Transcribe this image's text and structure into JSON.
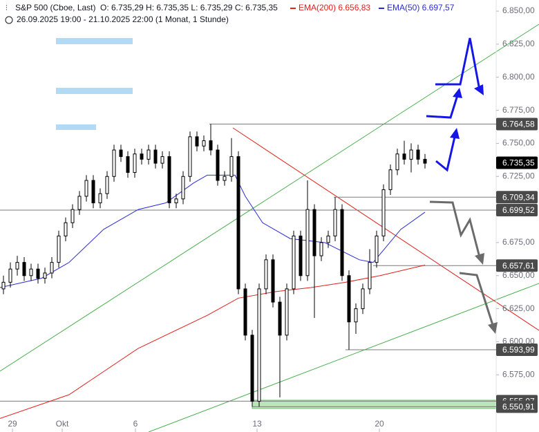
{
  "header": {
    "symbol": "S&P 500 (Cboe, Last)",
    "ohlc": "O: 6.735,29  H: 6.735,35  L: 6.735,29  C: 6.735,35",
    "ema200": "EMA(200)  6.656,83",
    "ema50": "EMA(50)  6.697,57",
    "range": "26.09.2025 19:00 - 21.10.2025 22:00  (1 Monat, 1 Stunde)"
  },
  "chart_data": {
    "type": "candlestick",
    "xlim": [
      0,
      143.6
    ],
    "ylim": [
      6543.8,
      6858.4
    ],
    "xticks": [
      {
        "value": 3.6,
        "label": "29"
      },
      {
        "value": 18,
        "label": "Okt"
      },
      {
        "value": 39.2,
        "label": "6"
      },
      {
        "value": 74.4,
        "label": "13"
      },
      {
        "value": 109.8,
        "label": "20"
      }
    ],
    "yticks": [
      {
        "value": 6575,
        "label": "6.575,00"
      },
      {
        "value": 6600,
        "label": "6.600,00"
      },
      {
        "value": 6625,
        "label": "6.625,00"
      },
      {
        "value": 6650,
        "label": "6.650,00"
      },
      {
        "value": 6675,
        "label": "6.675,00"
      },
      {
        "value": 6700,
        "label": "6.700,00"
      },
      {
        "value": 6725,
        "label": "6.725,00"
      },
      {
        "value": 6750,
        "label": "6.750,00"
      },
      {
        "value": 6775,
        "label": "6.775,00"
      },
      {
        "value": 6800,
        "label": "6.800,00"
      },
      {
        "value": 6825,
        "label": "6.825,00"
      },
      {
        "value": 6850,
        "label": "6.850,00"
      }
    ],
    "x": [
      1,
      3,
      5,
      7,
      9,
      11,
      13,
      15,
      17,
      19,
      21,
      23,
      25,
      27,
      29,
      31,
      33,
      35,
      37,
      39,
      41,
      43,
      45,
      47,
      49,
      51,
      53,
      55,
      57,
      59,
      61,
      63,
      65,
      67,
      69,
      71,
      73,
      75,
      77,
      79,
      81,
      83,
      85,
      87,
      89,
      91,
      93,
      95,
      97,
      99,
      101,
      103,
      105,
      107,
      109,
      111,
      113,
      115,
      117,
      119,
      121,
      123
    ],
    "open": [
      6640,
      6645,
      6655,
      6660,
      6650,
      6655,
      6648,
      6652,
      6660,
      6680,
      6690,
      6700,
      6710,
      6722,
      6705,
      6712,
      6725,
      6745,
      6740,
      6728,
      6742,
      6738,
      6745,
      6735,
      6740,
      6705,
      6708,
      6725,
      6755,
      6748,
      6752,
      6745,
      6722,
      6725,
      6740,
      6640,
      6605,
      6555,
      6640,
      6662,
      6630,
      6605,
      6640,
      6680,
      6650,
      6700,
      6665,
      6675,
      6680,
      6700,
      6650,
      6615,
      6625,
      6640,
      6660,
      6680,
      6715,
      6730,
      6742,
      6738,
      6745,
      6738
    ],
    "high": [
      6650,
      6660,
      6665,
      6664,
      6659,
      6659,
      6656,
      6664,
      6684,
      6694,
      6704,
      6714,
      6726,
      6726,
      6716,
      6729,
      6749,
      6749,
      6744,
      6746,
      6746,
      6749,
      6749,
      6744,
      6744,
      6712,
      6729,
      6759,
      6759,
      6756,
      6764.58,
      6749,
      6729,
      6754,
      6744,
      6644,
      6609,
      6644,
      6666,
      6666,
      6634,
      6644,
      6684,
      6684,
      6722,
      6704,
      6679,
      6684,
      6709.34,
      6704,
      6654,
      6629,
      6644,
      6670,
      6684,
      6719,
      6734,
      6746,
      6752,
      6750,
      6749,
      6742
    ],
    "low": [
      6636,
      6641,
      6650,
      6646,
      6646,
      6644,
      6644,
      6648,
      6656,
      6676,
      6686,
      6696,
      6706,
      6701,
      6701,
      6708,
      6721,
      6736,
      6724,
      6724,
      6734,
      6734,
      6731,
      6731,
      6701,
      6701,
      6704,
      6721,
      6744,
      6744,
      6741,
      6718,
      6718,
      6721,
      6636,
      6601,
      6550.91,
      6551,
      6636,
      6626,
      6558,
      6601,
      6636,
      6646,
      6646,
      6618,
      6661,
      6671,
      6676,
      6646,
      6593.99,
      6606,
      6621,
      6636,
      6656,
      6676,
      6711,
      6726,
      6734,
      6728,
      6734,
      6731
    ],
    "close": [
      6645,
      6655,
      6660,
      6650,
      6655,
      6648,
      6652,
      6660,
      6680,
      6690,
      6700,
      6710,
      6722,
      6705,
      6712,
      6725,
      6745,
      6740,
      6728,
      6742,
      6738,
      6745,
      6735,
      6740,
      6705,
      6708,
      6725,
      6755,
      6748,
      6752,
      6745,
      6722,
      6725,
      6740,
      6640,
      6605,
      6555,
      6640,
      6662,
      6630,
      6605,
      6640,
      6680,
      6650,
      6700,
      6665,
      6675,
      6680,
      6700,
      6650,
      6615,
      6625,
      6640,
      6660,
      6680,
      6715,
      6730,
      6742,
      6738,
      6745,
      6738,
      6735
    ],
    "up_color": "#000000",
    "down_color": "#000000",
    "lines": [
      {
        "color": "#e0201b",
        "x": [
          0,
          20,
          40,
          60,
          69,
          80,
          90,
          100,
          110,
          123
        ],
        "values": [
          6542,
          6560,
          6595,
          6620,
          6633,
          6638,
          6641,
          6645,
          6650,
          6658
        ]
      },
      {
        "color": "#2a2ad8",
        "x": [
          0,
          12,
          20,
          30,
          40,
          48,
          56,
          60,
          68,
          71,
          76,
          84,
          94,
          104,
          108,
          116,
          123
        ],
        "values": [
          6641,
          6648,
          6660,
          6685,
          6700,
          6705,
          6720,
          6726,
          6726,
          6710,
          6690,
          6678,
          6675,
          6662,
          6660,
          6685,
          6698
        ]
      }
    ],
    "levels": [
      {
        "value": 6764.58,
        "label": "6.764,58",
        "x0": 60.6
      },
      {
        "value": 6735.35,
        "label": "6.735,35",
        "x0": null
      },
      {
        "value": 6709.34,
        "label": "6.709,34",
        "x0": 96.6
      },
      {
        "value": 6699.52,
        "label": "6.699,52",
        "x0": 0
      },
      {
        "value": 6657.61,
        "label": "6.657,61",
        "x0": 108
      },
      {
        "value": 6593.99,
        "label": "6.593,99",
        "x0": 100
      },
      {
        "value": 6555.07,
        "label": "6.555,07",
        "x0": 0
      },
      {
        "value": 6550.91,
        "label": "6.550,91",
        "x0": 73
      }
    ]
  }
}
